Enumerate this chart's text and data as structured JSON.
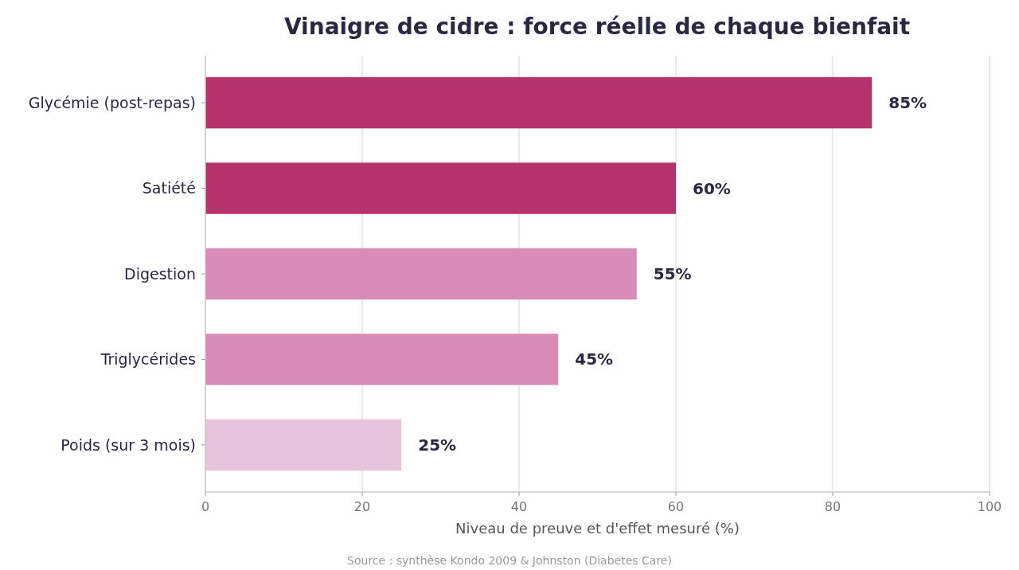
{
  "chart_data": {
    "type": "bar",
    "orientation": "horizontal",
    "title": "Vinaigre de cidre : force réelle de chaque bienfait",
    "xlabel": "Niveau de preuve et d'effet mesuré (%)",
    "categories": [
      "Glycémie (post-repas)",
      "Satiété",
      "Digestion",
      "Triglycérides",
      "Poids (sur 3 mois)"
    ],
    "values": [
      85,
      60,
      55,
      45,
      25
    ],
    "colors": [
      "#b5336a",
      "#b5336a",
      "#d98bb8",
      "#d98bb8",
      "#e8c4dc"
    ],
    "value_labels": [
      "85%",
      "60%",
      "55%",
      "45%",
      "25%"
    ],
    "xlim": [
      0,
      100
    ],
    "xticks": [
      0,
      20,
      40,
      60,
      80,
      100
    ],
    "grid": "x",
    "annotations": [
      "Source : synthèse Kondo 2009 & Johnston (Diabetes Care)"
    ]
  }
}
